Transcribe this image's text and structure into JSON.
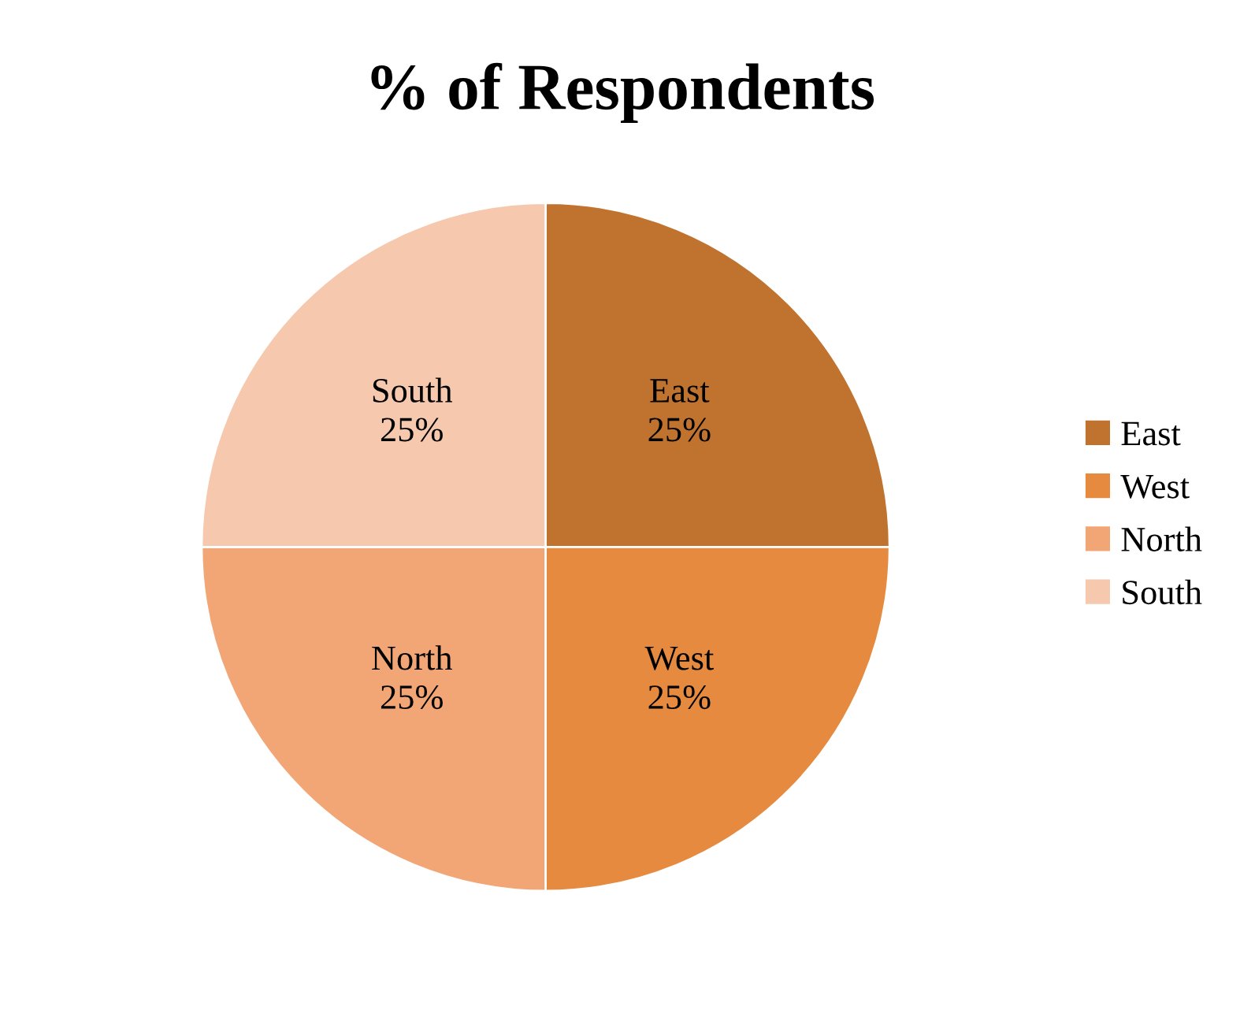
{
  "chart_data": {
    "type": "pie",
    "title": "% of Respondents",
    "categories": [
      "East",
      "West",
      "North",
      "South"
    ],
    "values": [
      25,
      25,
      25,
      25
    ],
    "value_labels": [
      "25%",
      "25%",
      "25%",
      "25%"
    ],
    "colors": [
      "#c0722f",
      "#e68a3f",
      "#f2a676",
      "#f6c8ad"
    ],
    "legend": "right"
  }
}
